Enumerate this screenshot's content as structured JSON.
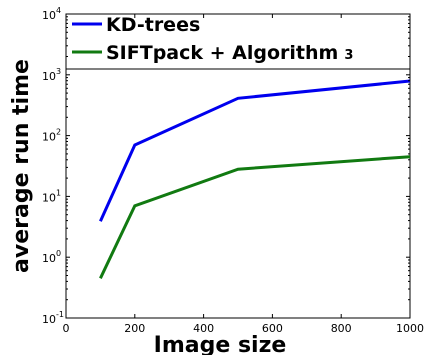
{
  "chart_data": {
    "type": "line",
    "title": "",
    "xlabel": "Image size",
    "ylabel": "average run time",
    "xlim": [
      0,
      1000
    ],
    "ylim": [
      0.1,
      10000
    ],
    "yscale": "log",
    "grid": false,
    "legend_position": "top",
    "x_ticks": [
      "0",
      "200",
      "400",
      "600",
      "800",
      "1000"
    ],
    "y_ticks": [
      {
        "base": "10",
        "exp": "-1"
      },
      {
        "base": "10",
        "exp": "0"
      },
      {
        "base": "10",
        "exp": "1"
      },
      {
        "base": "10",
        "exp": "2"
      },
      {
        "base": "10",
        "exp": "3"
      },
      {
        "base": "10",
        "exp": "4"
      }
    ],
    "legend_entries": [
      {
        "text": "KD-trees",
        "suffix": ""
      },
      {
        "text": "SIFTpack + Algorithm",
        "suffix": "3"
      }
    ],
    "x": [
      100,
      200,
      500,
      1000
    ],
    "series": [
      {
        "name": "KD-trees",
        "color": "#0000ee",
        "values": [
          3.9,
          70,
          410,
          790
        ]
      },
      {
        "name": "SIFTpack + Algorithm 3",
        "color": "#117a11",
        "values": [
          0.45,
          7,
          28,
          45
        ]
      }
    ]
  }
}
